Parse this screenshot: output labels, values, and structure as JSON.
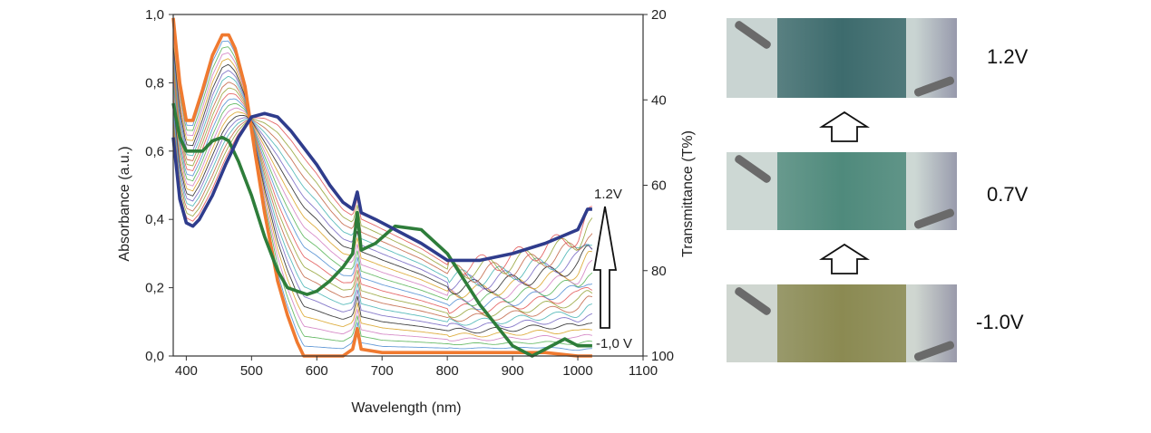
{
  "chart_data": {
    "type": "line",
    "xlabel": "Wavelength (nm)",
    "ylabel": "Absorbance (a.u.)",
    "y2label": "Transmittance (T%)",
    "xlim": [
      380,
      1100
    ],
    "ylim": [
      0,
      1.0
    ],
    "y2lim": [
      100,
      20
    ],
    "x_ticks": [
      "400",
      "500",
      "600",
      "700",
      "800",
      "900",
      "1000",
      "1100"
    ],
    "y_ticks": [
      "0,0",
      "0,2",
      "0,4",
      "0,6",
      "0,8",
      "1,0"
    ],
    "y2_ticks": [
      "20",
      "40",
      "60",
      "80",
      "100"
    ],
    "annotations": {
      "top": "1.2V",
      "bottom": "-1,0 V"
    },
    "intermediate_curve_count": 20,
    "intermediate_colors": [
      "#e05050",
      "#4a8ad0",
      "#50b050",
      "#d07ac0",
      "#d8a020",
      "#202020",
      "#7060c0",
      "#40b0b0",
      "#c06040",
      "#90a030"
    ],
    "series": [
      {
        "color": "#f07a30",
        "x": [
          380,
          390,
          400,
          410,
          425,
          440,
          455,
          465,
          475,
          490,
          505,
          520,
          540,
          555,
          570,
          580,
          600,
          640,
          655,
          662,
          668,
          700,
          800,
          900,
          950,
          1000,
          1022
        ],
        "values": [
          0.99,
          0.8,
          0.69,
          0.69,
          0.78,
          0.88,
          0.94,
          0.94,
          0.9,
          0.79,
          0.6,
          0.42,
          0.22,
          0.12,
          0.04,
          0.0,
          0.0,
          0.0,
          0.02,
          0.08,
          0.02,
          0.01,
          0.01,
          0.01,
          0.01,
          0.0,
          0.0
        ]
      },
      {
        "color": "#2e7d3a",
        "x": [
          380,
          390,
          400,
          410,
          425,
          440,
          455,
          465,
          480,
          500,
          520,
          540,
          555,
          570,
          585,
          600,
          620,
          640,
          655,
          662,
          668,
          690,
          720,
          760,
          800,
          850,
          900,
          930,
          950,
          980,
          1000,
          1022
        ],
        "values": [
          0.74,
          0.64,
          0.6,
          0.6,
          0.6,
          0.63,
          0.64,
          0.63,
          0.57,
          0.47,
          0.35,
          0.25,
          0.2,
          0.19,
          0.18,
          0.19,
          0.22,
          0.26,
          0.3,
          0.42,
          0.31,
          0.33,
          0.38,
          0.37,
          0.3,
          0.15,
          0.03,
          0.0,
          0.02,
          0.05,
          0.03,
          0.03
        ]
      },
      {
        "color": "#2f3c8c",
        "x": [
          380,
          390,
          400,
          410,
          420,
          440,
          460,
          480,
          500,
          520,
          540,
          560,
          580,
          600,
          620,
          640,
          655,
          662,
          668,
          690,
          720,
          760,
          800,
          850,
          900,
          950,
          1000,
          1015,
          1022
        ],
        "values": [
          0.64,
          0.46,
          0.39,
          0.38,
          0.4,
          0.47,
          0.56,
          0.64,
          0.7,
          0.71,
          0.7,
          0.66,
          0.61,
          0.56,
          0.5,
          0.45,
          0.43,
          0.48,
          0.42,
          0.4,
          0.37,
          0.33,
          0.28,
          0.28,
          0.3,
          0.33,
          0.37,
          0.43,
          0.43
        ]
      }
    ]
  },
  "photos": [
    {
      "voltage": "1.2V",
      "tint": "#3d6b6d"
    },
    {
      "voltage": "0.7V",
      "tint": "#4f8a7c"
    },
    {
      "voltage": "-1.0V",
      "tint": "#8b8a52"
    }
  ]
}
